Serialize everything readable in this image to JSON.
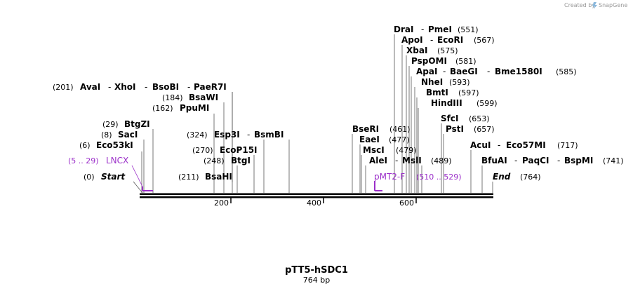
{
  "credit": {
    "prefix": "Created by",
    "brand": "SnapGene"
  },
  "plasmid": {
    "name": "pTT5-hSDC1",
    "length_label": "764 bp",
    "length": 764
  },
  "colors": {
    "primer": "#9b2fc9",
    "line": "#000000"
  },
  "axis_ticks": [
    {
      "label": "200"
    },
    {
      "label": "400"
    },
    {
      "label": "600"
    }
  ],
  "ends": {
    "start": {
      "pos": "(0)",
      "name": "Start"
    },
    "end": {
      "name": "End",
      "pos": "(764)"
    }
  },
  "primers": [
    {
      "name": "LNCX",
      "range": "(5 .. 29)"
    },
    {
      "name": "pMT2-F",
      "range": "(510 .. 529)"
    }
  ],
  "site_labels": [
    {
      "pos": "(6)",
      "names": [
        "Eco53kI"
      ]
    },
    {
      "pos": "(8)",
      "names": [
        "SacI"
      ]
    },
    {
      "pos": "(29)",
      "names": [
        "BtgZI"
      ]
    },
    {
      "pos": "(162)",
      "names": [
        "PpuMI"
      ]
    },
    {
      "pos": "(184)",
      "names": [
        "BsaWI"
      ]
    },
    {
      "pos": "(201)",
      "names": [
        "AvaI",
        "XhoI",
        "BsoBI",
        "PaeR7I"
      ]
    },
    {
      "pos": "(211)",
      "names": [
        "BsaHI"
      ]
    },
    {
      "pos": "(248)",
      "names": [
        "BtgI"
      ]
    },
    {
      "pos": "(270)",
      "names": [
        "EcoP15I"
      ]
    },
    {
      "pos": "(324)",
      "names": [
        "Esp3I",
        "BsmBI"
      ]
    },
    {
      "pos": "(461)",
      "names": [
        "BseRI"
      ]
    },
    {
      "pos": "(477)",
      "names": [
        "EaeI"
      ]
    },
    {
      "pos": "(479)",
      "names": [
        "MscI"
      ]
    },
    {
      "pos": "(489)",
      "names": [
        "AleI",
        "MslI"
      ]
    },
    {
      "pos": "(551)",
      "names": [
        "DraI",
        "PmeI"
      ]
    },
    {
      "pos": "(567)",
      "names": [
        "ApoI",
        "EcoRI"
      ]
    },
    {
      "pos": "(575)",
      "names": [
        "XbaI"
      ]
    },
    {
      "pos": "(581)",
      "names": [
        "PspOMI"
      ]
    },
    {
      "pos": "(585)",
      "names": [
        "ApaI",
        "BaeGI",
        "Bme1580I"
      ]
    },
    {
      "pos": "(593)",
      "names": [
        "NheI"
      ]
    },
    {
      "pos": "(597)",
      "names": [
        "BmtI"
      ]
    },
    {
      "pos": "(599)",
      "names": [
        "HindIII"
      ]
    },
    {
      "pos": "(653)",
      "names": [
        "SfcI"
      ]
    },
    {
      "pos": "(657)",
      "names": [
        "PstI"
      ]
    },
    {
      "pos": "(717)",
      "names": [
        "AcuI",
        "Eco57MI"
      ]
    },
    {
      "pos": "(741)",
      "names": [
        "BfuAI",
        "PaqCI",
        "BspMI"
      ]
    }
  ]
}
